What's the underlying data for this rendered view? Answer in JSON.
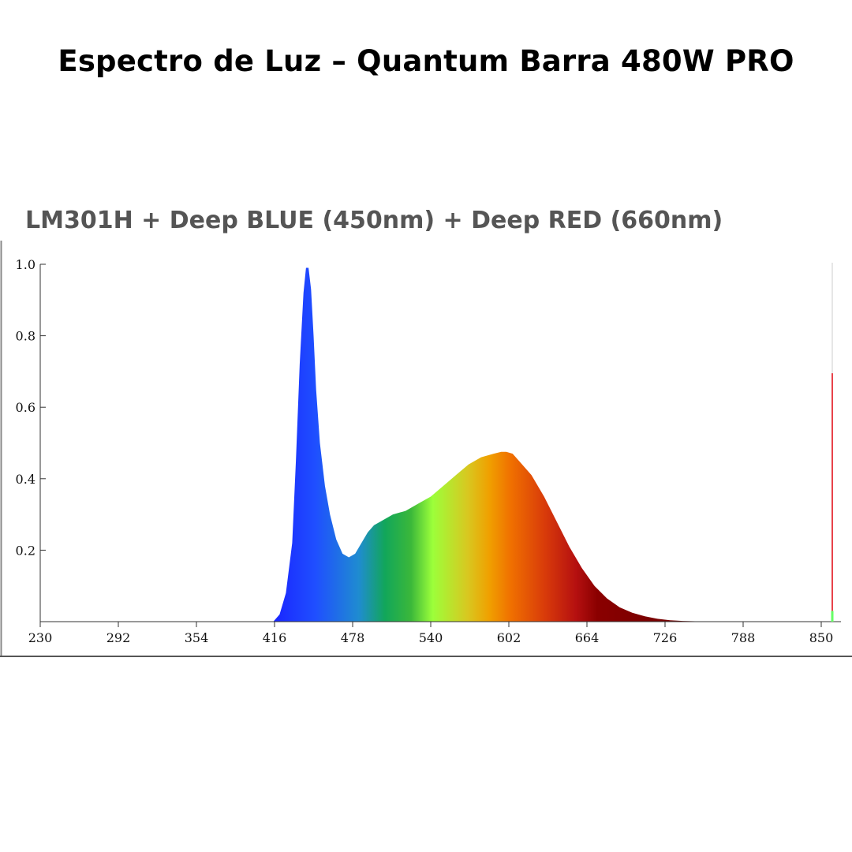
{
  "header": {
    "title": "Espectro de Luz – Quantum Barra 480W PRO"
  },
  "chart_data": {
    "type": "area",
    "title": "LM301H + Deep BLUE (450nm) + Deep RED (660nm)",
    "xlabel": "",
    "ylabel": "",
    "xlim": [
      230,
      862
    ],
    "ylim": [
      0,
      1.0
    ],
    "x_ticks": [
      "230",
      "292",
      "354",
      "416",
      "478",
      "540",
      "602",
      "664",
      "726",
      "788",
      "850"
    ],
    "y_ticks": [
      "0.2",
      "0.4",
      "0.6",
      "0.8",
      "1.0"
    ],
    "grid": false,
    "legend": "none",
    "series": [
      {
        "x": [
          415,
          420,
          425,
          430,
          433,
          436,
          439,
          441,
          443,
          445,
          447,
          449,
          452,
          456,
          460,
          465,
          470,
          475,
          480,
          485,
          490,
          495,
          500,
          510,
          520,
          530,
          540,
          550,
          560,
          570,
          580,
          590,
          596,
          600,
          605,
          610,
          620,
          630,
          640,
          650,
          660,
          670,
          680,
          690,
          700,
          710,
          720,
          730,
          740,
          750,
          760,
          765
        ],
        "y": [
          0.0,
          0.02,
          0.08,
          0.22,
          0.45,
          0.72,
          0.92,
          0.99,
          0.99,
          0.93,
          0.8,
          0.65,
          0.5,
          0.38,
          0.3,
          0.23,
          0.19,
          0.18,
          0.19,
          0.22,
          0.25,
          0.27,
          0.28,
          0.3,
          0.31,
          0.33,
          0.35,
          0.38,
          0.41,
          0.44,
          0.46,
          0.47,
          0.475,
          0.475,
          0.47,
          0.45,
          0.41,
          0.35,
          0.28,
          0.21,
          0.15,
          0.1,
          0.065,
          0.04,
          0.025,
          0.015,
          0.008,
          0.004,
          0.002,
          0.001,
          0.0,
          0.0
        ]
      },
      {
        "x": [
          862
        ],
        "y": [
          0.695
        ]
      }
    ]
  },
  "colors": {
    "spectrum_stops": [
      "#1a24ff",
      "#1f4fff",
      "#1f8cd0",
      "#12a65a",
      "#3bb83a",
      "#9cff3a",
      "#d8c820",
      "#f0a000",
      "#f07000",
      "#d83a0a",
      "#b51010",
      "#8a0000",
      "#6a0000"
    ],
    "marker_red": "#e8424a",
    "marker_green": "#66ff66"
  }
}
